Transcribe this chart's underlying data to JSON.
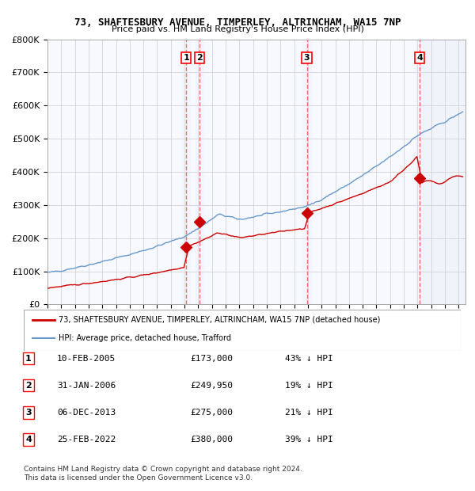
{
  "title1": "73, SHAFTESBURY AVENUE, TIMPERLEY, ALTRINCHAM, WA15 7NP",
  "title2": "Price paid vs. HM Land Registry's House Price Index (HPI)",
  "legend_label_red": "73, SHAFTESBURY AVENUE, TIMPERLEY, ALTRINCHAM, WA15 7NP (detached house)",
  "legend_label_blue": "HPI: Average price, detached house, Trafford",
  "footer1": "Contains HM Land Registry data © Crown copyright and database right 2024.",
  "footer2": "This data is licensed under the Open Government Licence v3.0.",
  "transactions": [
    {
      "num": 1,
      "date": "10-FEB-2005",
      "price": 173000,
      "pct": "43%",
      "year": 2005.12
    },
    {
      "num": 2,
      "date": "31-JAN-2006",
      "price": 249950,
      "pct": "19%",
      "year": 2006.08
    },
    {
      "num": 3,
      "date": "06-DEC-2013",
      "price": 275000,
      "pct": "21%",
      "year": 2013.92
    },
    {
      "num": 4,
      "date": "25-FEB-2022",
      "price": 380000,
      "pct": "39%",
      "year": 2022.15
    }
  ],
  "ylim": [
    0,
    800000
  ],
  "xlim_start": 1995.0,
  "xlim_end": 2025.5,
  "color_red": "#cc0000",
  "color_blue": "#6699cc",
  "color_bg_band": "#ddeeff",
  "color_vline": "#ff4444",
  "grid_color": "#cccccc",
  "bg_color": "#f8f8ff"
}
